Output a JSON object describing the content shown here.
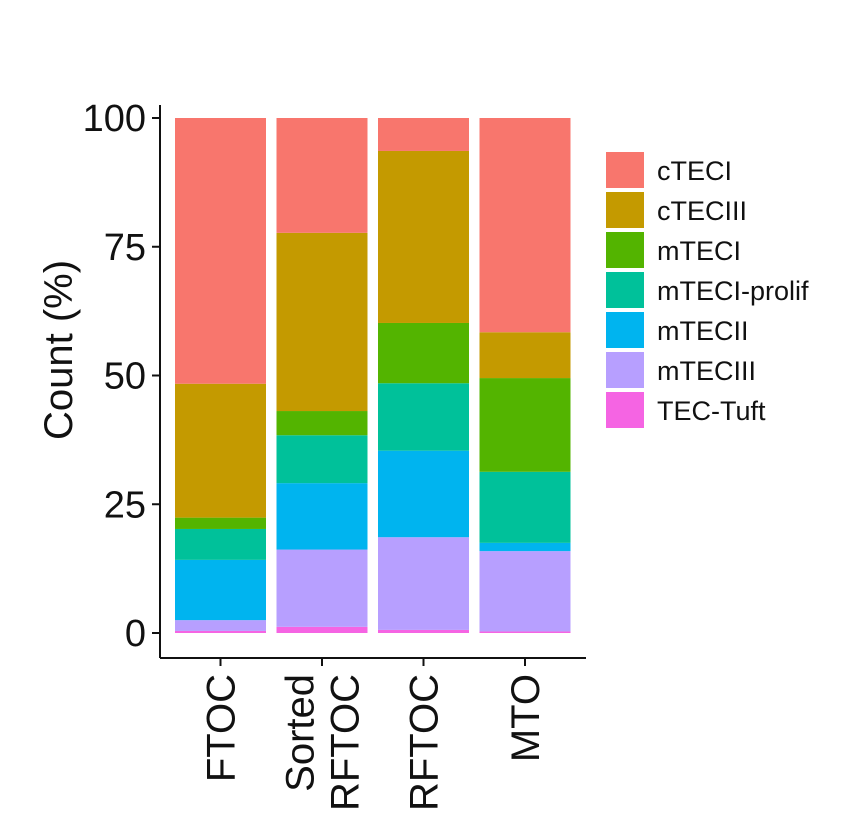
{
  "chart_data": {
    "type": "bar",
    "stacked": true,
    "categories": [
      {
        "lines": [
          "FTOC"
        ]
      },
      {
        "lines": [
          "Sorted",
          "RFTOC"
        ]
      },
      {
        "lines": [
          "RFTOC"
        ]
      },
      {
        "lines": [
          "MTO"
        ]
      }
    ],
    "series": [
      {
        "name": "TEC-Tuft",
        "color": "#F564E3",
        "values": [
          0.4,
          1.2,
          0.6,
          0.3
        ]
      },
      {
        "name": "mTECIII",
        "color": "#B79FFF",
        "values": [
          2.1,
          15.0,
          18.0,
          15.6
        ]
      },
      {
        "name": "mTECII",
        "color": "#00B4EF",
        "values": [
          11.7,
          12.9,
          16.8,
          1.6
        ]
      },
      {
        "name": "mTECI-prolif",
        "color": "#00C19A",
        "values": [
          6.0,
          9.3,
          13.1,
          13.8
        ]
      },
      {
        "name": "mTECI",
        "color": "#53B400",
        "values": [
          2.2,
          4.7,
          11.7,
          18.2
        ]
      },
      {
        "name": "cTECIII",
        "color": "#C49A00",
        "values": [
          26.0,
          34.6,
          33.4,
          8.9
        ]
      },
      {
        "name": "cTECI",
        "color": "#F8766D",
        "values": [
          51.6,
          22.3,
          6.4,
          41.6
        ]
      }
    ],
    "legend_order": [
      "cTECI",
      "cTECIII",
      "mTECI",
      "mTECI-prolif",
      "mTECII",
      "mTECIII",
      "TEC-Tuft"
    ],
    "title": "",
    "xlabel": "",
    "ylabel": "Count (%)",
    "ylim": [
      0,
      100
    ],
    "yticks": [
      0,
      25,
      50,
      75,
      100
    ],
    "legend_position": "right",
    "grid": false
  }
}
